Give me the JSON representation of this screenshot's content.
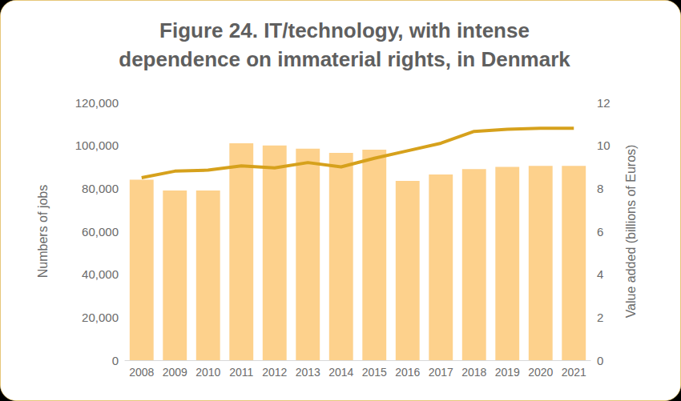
{
  "chart_data": {
    "type": "bar",
    "title": "Figure 24. IT/technology, with intense\ndependence on immaterial rights, in Denmark",
    "categories": [
      "2008",
      "2009",
      "2010",
      "2011",
      "2012",
      "2013",
      "2014",
      "2015",
      "2016",
      "2017",
      "2018",
      "2019",
      "2020",
      "2021"
    ],
    "y_label": "Numbers of jobs",
    "y2_label": "Value added (billions of Euros)",
    "series": [
      {
        "type": "bar",
        "color": "#fdd18c",
        "values": [
          84000,
          79000,
          79000,
          101000,
          100000,
          98500,
          96500,
          98000,
          83500,
          86500,
          89000,
          90000,
          90500,
          90500
        ]
      },
      {
        "type": "line",
        "color": "#d6a11c",
        "axis": "y2",
        "marker": "none",
        "values": [
          8.5,
          8.8,
          8.85,
          9.05,
          8.95,
          9.2,
          9.0,
          9.4,
          9.75,
          10.1,
          10.65,
          10.75,
          10.8,
          10.8
        ]
      }
    ],
    "ylim": [
      0,
      120000
    ],
    "yticks": [
      0,
      {
        "value": 20000,
        "label": "20,000"
      },
      {
        "value": 40000,
        "label": "40,000"
      },
      {
        "value": 60000,
        "label": "60,000"
      },
      {
        "value": 80000,
        "label": "80,000"
      },
      {
        "value": 100000,
        "label": "100,000"
      },
      {
        "value": 120000,
        "label": "120,000"
      }
    ],
    "y2lim": [
      0,
      12
    ],
    "y2ticks": [
      0,
      2,
      4,
      6,
      8,
      10,
      12
    ],
    "grid": false
  }
}
